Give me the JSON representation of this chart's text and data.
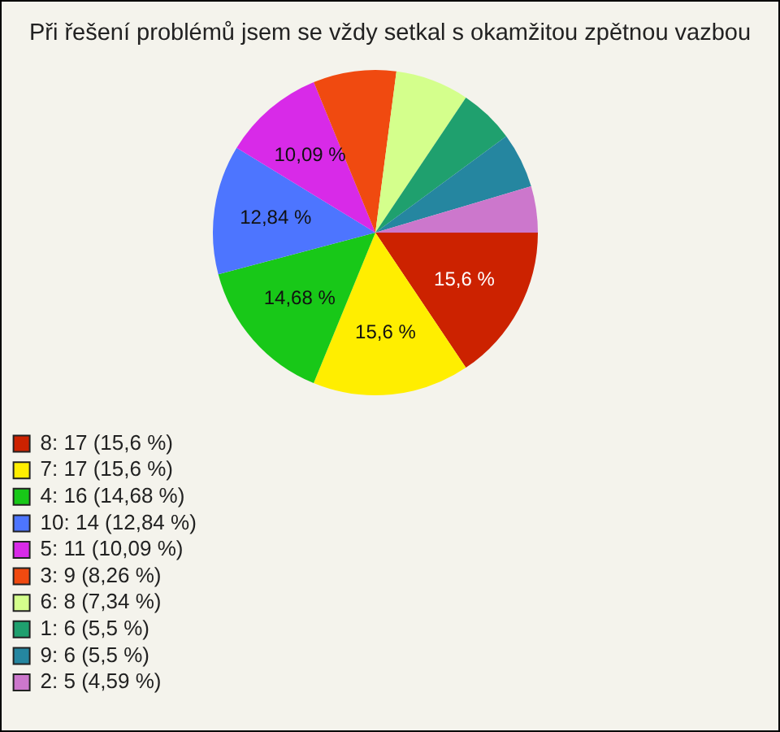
{
  "chart_data": {
    "type": "pie",
    "title": "Při řešení problémů jsem se vždy setkal s okamžitou zpětnou vazbou",
    "categories": [
      "8: 17 (15,6 %)",
      "7: 17 (15,6 %)",
      "4: 16 (14,68 %)",
      "10: 14 (12,84 %)",
      "5: 11 (10,09 %)",
      "3: 9 (8,26 %)",
      "6: 8 (7,34 %)",
      "1: 6 (5,5 %)",
      "9: 6 (5,5 %)",
      "2: 5 (4,59 %)"
    ],
    "values": [
      15.6,
      15.6,
      14.68,
      12.84,
      10.09,
      8.26,
      7.34,
      5.5,
      5.5,
      4.59
    ],
    "colors": [
      "#cc2200",
      "#ffee00",
      "#18c818",
      "#4d75ff",
      "#d82ae8",
      "#f04a10",
      "#d4ff8c",
      "#1fa06e",
      "#2586a0",
      "#cc77cc"
    ],
    "value_labels": [
      "15,6 %",
      "15,6 %",
      "14,68 %",
      "12,84 %",
      "10,09 %",
      null,
      null,
      null,
      null,
      null
    ],
    "legend": "bottom left"
  }
}
